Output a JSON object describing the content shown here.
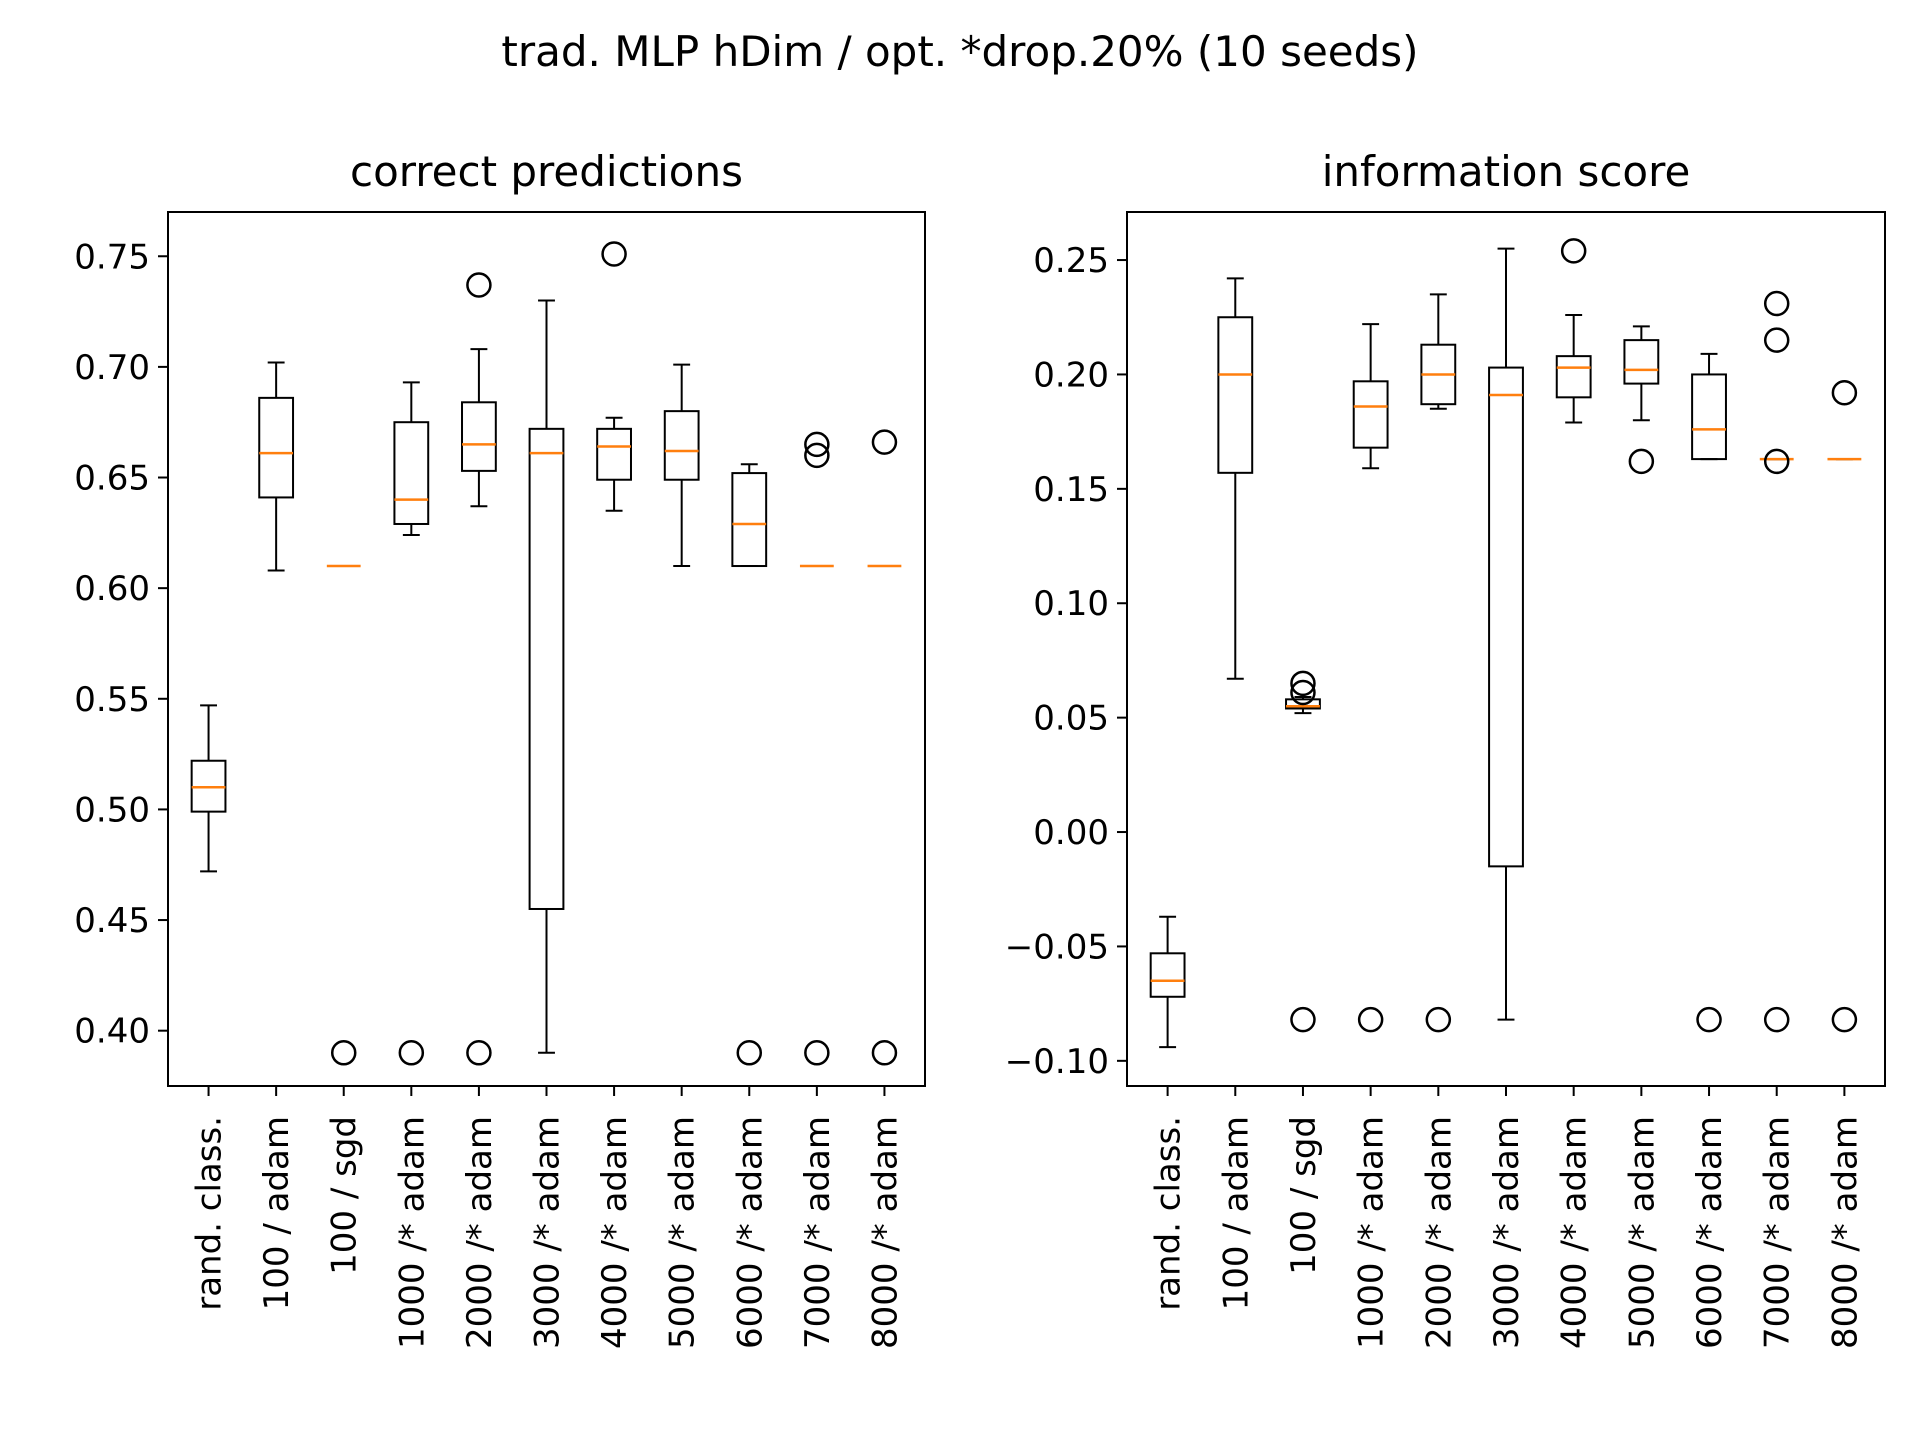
{
  "suptitle": "trad. MLP hDim / opt. *drop.20% (10 seeds)",
  "colors": {
    "box": "#000000",
    "median": "#ff7f0e",
    "background": "#ffffff"
  },
  "chart_data": [
    {
      "type": "box",
      "title": "correct predictions",
      "xlabel": "",
      "ylabel": "",
      "ylim": [
        0.375,
        0.77
      ],
      "yticks": [
        0.4,
        0.45,
        0.5,
        0.55,
        0.6,
        0.65,
        0.7,
        0.75
      ],
      "ytick_labels": [
        "0.40",
        "0.45",
        "0.50",
        "0.55",
        "0.60",
        "0.65",
        "0.70",
        "0.75"
      ],
      "categories": [
        "rand. class.",
        "100 / adam",
        "100 / sgd",
        "1000 /* adam",
        "2000 /* adam",
        "3000 /* adam",
        "4000 /* adam",
        "5000 /* adam",
        "6000 /* adam",
        "7000 /* adam",
        "8000 /* adam"
      ],
      "boxes": [
        {
          "whislo": 0.472,
          "q1": 0.499,
          "med": 0.51,
          "q3": 0.522,
          "whishi": 0.547,
          "fliers": []
        },
        {
          "whislo": 0.608,
          "q1": 0.641,
          "med": 0.661,
          "q3": 0.686,
          "whishi": 0.702,
          "fliers": []
        },
        {
          "whislo": 0.61,
          "q1": 0.61,
          "med": 0.61,
          "q3": 0.61,
          "whishi": 0.61,
          "fliers": [
            0.39
          ]
        },
        {
          "whislo": 0.624,
          "q1": 0.629,
          "med": 0.64,
          "q3": 0.675,
          "whishi": 0.693,
          "fliers": [
            0.39
          ]
        },
        {
          "whislo": 0.637,
          "q1": 0.653,
          "med": 0.665,
          "q3": 0.684,
          "whishi": 0.708,
          "fliers": [
            0.737,
            0.39
          ]
        },
        {
          "whislo": 0.39,
          "q1": 0.455,
          "med": 0.661,
          "q3": 0.672,
          "whishi": 0.73,
          "fliers": []
        },
        {
          "whislo": 0.635,
          "q1": 0.649,
          "med": 0.664,
          "q3": 0.672,
          "whishi": 0.677,
          "fliers": [
            0.751
          ]
        },
        {
          "whislo": 0.61,
          "q1": 0.649,
          "med": 0.662,
          "q3": 0.68,
          "whishi": 0.701,
          "fliers": []
        },
        {
          "whislo": 0.61,
          "q1": 0.61,
          "med": 0.629,
          "q3": 0.652,
          "whishi": 0.656,
          "fliers": [
            0.39
          ]
        },
        {
          "whislo": 0.61,
          "q1": 0.61,
          "med": 0.61,
          "q3": 0.61,
          "whishi": 0.61,
          "fliers": [
            0.665,
            0.66,
            0.39
          ]
        },
        {
          "whislo": 0.61,
          "q1": 0.61,
          "med": 0.61,
          "q3": 0.61,
          "whishi": 0.61,
          "fliers": [
            0.666,
            0.39
          ]
        }
      ]
    },
    {
      "type": "box",
      "title": "information score",
      "xlabel": "",
      "ylabel": "",
      "ylim": [
        -0.111,
        0.271
      ],
      "yticks": [
        -0.1,
        -0.05,
        0.0,
        0.05,
        0.1,
        0.15,
        0.2,
        0.25
      ],
      "ytick_labels": [
        "−0.10",
        "−0.05",
        "0.00",
        "0.05",
        "0.10",
        "0.15",
        "0.20",
        "0.25"
      ],
      "categories": [
        "rand. class.",
        "100 / adam",
        "100 / sgd",
        "1000 /* adam",
        "2000 /* adam",
        "3000 /* adam",
        "4000 /* adam",
        "5000 /* adam",
        "6000 /* adam",
        "7000 /* adam",
        "8000 /* adam"
      ],
      "boxes": [
        {
          "whislo": -0.094,
          "q1": -0.072,
          "med": -0.065,
          "q3": -0.053,
          "whishi": -0.037,
          "fliers": []
        },
        {
          "whislo": 0.067,
          "q1": 0.157,
          "med": 0.2,
          "q3": 0.225,
          "whishi": 0.242,
          "fliers": []
        },
        {
          "whislo": 0.052,
          "q1": 0.054,
          "med": 0.055,
          "q3": 0.058,
          "whishi": 0.059,
          "fliers": [
            0.065,
            0.061,
            -0.082
          ]
        },
        {
          "whislo": 0.159,
          "q1": 0.168,
          "med": 0.186,
          "q3": 0.197,
          "whishi": 0.222,
          "fliers": [
            -0.082
          ]
        },
        {
          "whislo": 0.185,
          "q1": 0.187,
          "med": 0.2,
          "q3": 0.213,
          "whishi": 0.235,
          "fliers": [
            -0.082
          ]
        },
        {
          "whislo": -0.082,
          "q1": -0.015,
          "med": 0.191,
          "q3": 0.203,
          "whishi": 0.255,
          "fliers": []
        },
        {
          "whislo": 0.179,
          "q1": 0.19,
          "med": 0.203,
          "q3": 0.208,
          "whishi": 0.226,
          "fliers": [
            0.254
          ]
        },
        {
          "whislo": 0.18,
          "q1": 0.196,
          "med": 0.202,
          "q3": 0.215,
          "whishi": 0.221,
          "fliers": [
            0.162
          ]
        },
        {
          "whislo": 0.163,
          "q1": 0.163,
          "med": 0.176,
          "q3": 0.2,
          "whishi": 0.209,
          "fliers": [
            -0.082
          ]
        },
        {
          "whislo": 0.163,
          "q1": 0.163,
          "med": 0.163,
          "q3": 0.163,
          "whishi": 0.163,
          "fliers": [
            0.231,
            0.215,
            0.162,
            -0.082
          ]
        },
        {
          "whislo": 0.163,
          "q1": 0.163,
          "med": 0.163,
          "q3": 0.163,
          "whishi": 0.163,
          "fliers": [
            0.192,
            -0.082
          ]
        }
      ]
    }
  ]
}
